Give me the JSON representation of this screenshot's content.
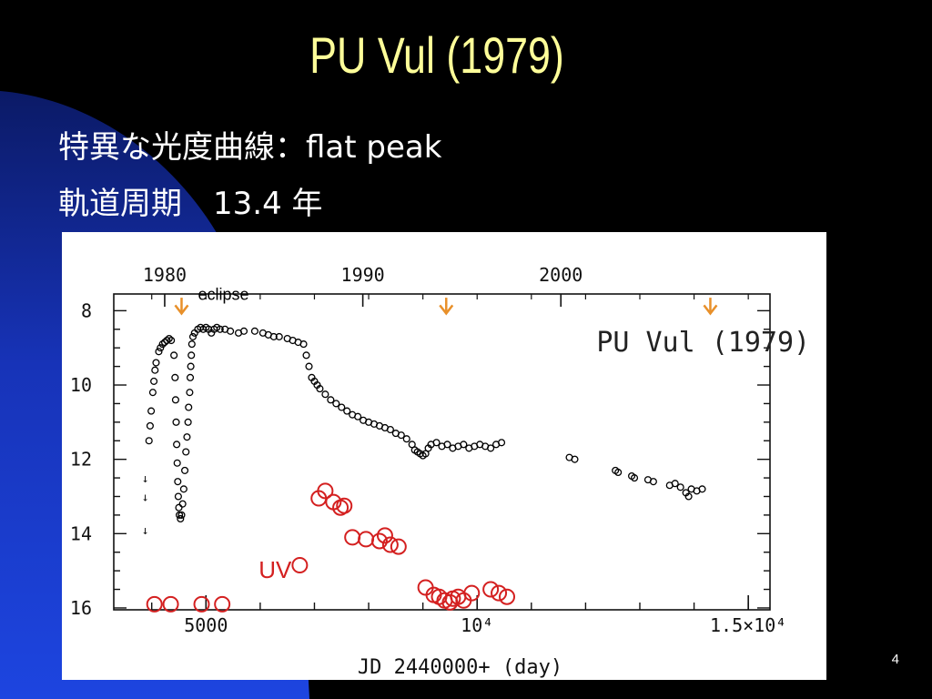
{
  "slide": {
    "title": "PU Vul  (1979)",
    "bullet_1": "特異な光度曲線：flat peak",
    "bullet_2": "軌道周期　13.4 年",
    "page_number": "4"
  },
  "colors": {
    "background": "#000000",
    "sweep": "#1b3fd6",
    "title": "#FFFF99",
    "text": "#FFFFFF",
    "optical_points": "#000000",
    "uv_points": "#D42020",
    "eclipse_arrows": "#E8902A"
  },
  "chart_data": {
    "type": "scatter",
    "title": "PU Vul (1979)",
    "xlabel": "JD 2440000+ (day)",
    "ylabel": "",
    "xlim": [
      3300,
      15400
    ],
    "ylim": [
      16.05,
      7.55
    ],
    "y_inverted": true,
    "x_ticks": [
      {
        "value": 5000,
        "label": "5000"
      },
      {
        "value": 10000,
        "label": "10⁴"
      },
      {
        "value": 15000,
        "label": "1.5×10⁴"
      }
    ],
    "top_axis_ticks": [
      {
        "value": 4239,
        "label": "1980"
      },
      {
        "value": 7892,
        "label": "1990"
      },
      {
        "value": 11544,
        "label": "2000"
      }
    ],
    "y_ticks": [
      {
        "value": 8,
        "label": "8"
      },
      {
        "value": 10,
        "label": "10"
      },
      {
        "value": 12,
        "label": "12"
      },
      {
        "value": 14,
        "label": "14"
      },
      {
        "value": 16,
        "label": "16"
      }
    ],
    "annotations": [
      {
        "text": "eclipse",
        "x": 4550,
        "y": 7.95
      },
      {
        "text": "UV",
        "x": 6880,
        "y": 14.95
      }
    ],
    "eclipses": [
      {
        "x": 4550,
        "label": "eclipse"
      },
      {
        "x": 9430,
        "label": ""
      },
      {
        "x": 14300,
        "label": ""
      }
    ],
    "upper_limits": [
      {
        "x": 3880,
        "y": 12.5
      },
      {
        "x": 3880,
        "y": 13.0
      },
      {
        "x": 3880,
        "y": 13.9
      }
    ],
    "series": [
      {
        "name": "",
        "color": "#000000",
        "points": [
          [
            3950,
            11.5
          ],
          [
            3970,
            11.1
          ],
          [
            3990,
            10.7
          ],
          [
            4020,
            10.2
          ],
          [
            4040,
            9.9
          ],
          [
            4060,
            9.6
          ],
          [
            4080,
            9.4
          ],
          [
            4130,
            9.1
          ],
          [
            4160,
            9.0
          ],
          [
            4200,
            8.9
          ],
          [
            4240,
            8.85
          ],
          [
            4280,
            8.8
          ],
          [
            4320,
            8.75
          ],
          [
            4360,
            8.8
          ],
          [
            4410,
            9.2
          ],
          [
            4430,
            9.8
          ],
          [
            4440,
            10.4
          ],
          [
            4450,
            11.0
          ],
          [
            4460,
            11.6
          ],
          [
            4470,
            12.1
          ],
          [
            4480,
            12.6
          ],
          [
            4490,
            13.0
          ],
          [
            4500,
            13.3
          ],
          [
            4510,
            13.5
          ],
          [
            4530,
            13.6
          ],
          [
            4550,
            13.5
          ],
          [
            4570,
            13.2
          ],
          [
            4590,
            12.8
          ],
          [
            4610,
            12.3
          ],
          [
            4630,
            11.8
          ],
          [
            4650,
            11.4
          ],
          [
            4670,
            11.0
          ],
          [
            4680,
            10.6
          ],
          [
            4700,
            10.2
          ],
          [
            4710,
            9.8
          ],
          [
            4720,
            9.5
          ],
          [
            4730,
            9.2
          ],
          [
            4740,
            8.9
          ],
          [
            4760,
            8.7
          ],
          [
            4790,
            8.6
          ],
          [
            4850,
            8.5
          ],
          [
            4900,
            8.45
          ],
          [
            4950,
            8.5
          ],
          [
            5000,
            8.45
          ],
          [
            5050,
            8.5
          ],
          [
            5100,
            8.6
          ],
          [
            5150,
            8.5
          ],
          [
            5200,
            8.45
          ],
          [
            5260,
            8.5
          ],
          [
            5350,
            8.5
          ],
          [
            5450,
            8.55
          ],
          [
            5600,
            8.6
          ],
          [
            5700,
            8.55
          ],
          [
            5900,
            8.55
          ],
          [
            6050,
            8.6
          ],
          [
            6150,
            8.65
          ],
          [
            6250,
            8.7
          ],
          [
            6350,
            8.7
          ],
          [
            6500,
            8.75
          ],
          [
            6600,
            8.8
          ],
          [
            6700,
            8.85
          ],
          [
            6800,
            8.9
          ],
          [
            6850,
            9.2
          ],
          [
            6900,
            9.5
          ],
          [
            6950,
            9.8
          ],
          [
            7000,
            9.9
          ],
          [
            7050,
            10.0
          ],
          [
            7100,
            10.1
          ],
          [
            7200,
            10.25
          ],
          [
            7300,
            10.4
          ],
          [
            7400,
            10.5
          ],
          [
            7500,
            10.6
          ],
          [
            7600,
            10.7
          ],
          [
            7700,
            10.8
          ],
          [
            7800,
            10.85
          ],
          [
            7900,
            10.95
          ],
          [
            8000,
            11.0
          ],
          [
            8100,
            11.05
          ],
          [
            8200,
            11.1
          ],
          [
            8300,
            11.15
          ],
          [
            8400,
            11.2
          ],
          [
            8500,
            11.3
          ],
          [
            8600,
            11.35
          ],
          [
            8700,
            11.45
          ],
          [
            8800,
            11.6
          ],
          [
            8850,
            11.75
          ],
          [
            8900,
            11.8
          ],
          [
            8950,
            11.85
          ],
          [
            9000,
            11.9
          ],
          [
            9050,
            11.85
          ],
          [
            9100,
            11.7
          ],
          [
            9150,
            11.6
          ],
          [
            9250,
            11.55
          ],
          [
            9350,
            11.65
          ],
          [
            9450,
            11.6
          ],
          [
            9550,
            11.7
          ],
          [
            9650,
            11.65
          ],
          [
            9750,
            11.6
          ],
          [
            9850,
            11.7
          ],
          [
            9950,
            11.65
          ],
          [
            10050,
            11.6
          ],
          [
            10150,
            11.65
          ],
          [
            10250,
            11.7
          ],
          [
            10350,
            11.6
          ],
          [
            10450,
            11.55
          ],
          [
            11700,
            11.95
          ],
          [
            11800,
            12.0
          ],
          [
            12550,
            12.3
          ],
          [
            12600,
            12.35
          ],
          [
            12850,
            12.45
          ],
          [
            12900,
            12.5
          ],
          [
            13150,
            12.55
          ],
          [
            13250,
            12.6
          ],
          [
            13550,
            12.7
          ],
          [
            13650,
            12.65
          ],
          [
            13750,
            12.75
          ],
          [
            13850,
            12.9
          ],
          [
            13900,
            13.0
          ],
          [
            13950,
            12.8
          ],
          [
            14050,
            12.85
          ],
          [
            14150,
            12.8
          ]
        ]
      },
      {
        "name": "UV",
        "color": "#D42020",
        "points": [
          [
            4050,
            15.9
          ],
          [
            4350,
            15.9
          ],
          [
            4920,
            15.9
          ],
          [
            5300,
            15.9
          ],
          [
            6730,
            14.85
          ],
          [
            7080,
            13.05
          ],
          [
            7200,
            12.85
          ],
          [
            7350,
            13.15
          ],
          [
            7480,
            13.3
          ],
          [
            7550,
            13.25
          ],
          [
            7700,
            14.1
          ],
          [
            7950,
            14.15
          ],
          [
            8200,
            14.2
          ],
          [
            8300,
            14.05
          ],
          [
            8400,
            14.3
          ],
          [
            8550,
            14.35
          ],
          [
            9050,
            15.45
          ],
          [
            9200,
            15.65
          ],
          [
            9300,
            15.7
          ],
          [
            9400,
            15.8
          ],
          [
            9500,
            15.85
          ],
          [
            9550,
            15.75
          ],
          [
            9650,
            15.7
          ],
          [
            9750,
            15.8
          ],
          [
            9900,
            15.6
          ],
          [
            10250,
            15.5
          ],
          [
            10400,
            15.6
          ],
          [
            10550,
            15.7
          ]
        ]
      }
    ]
  }
}
